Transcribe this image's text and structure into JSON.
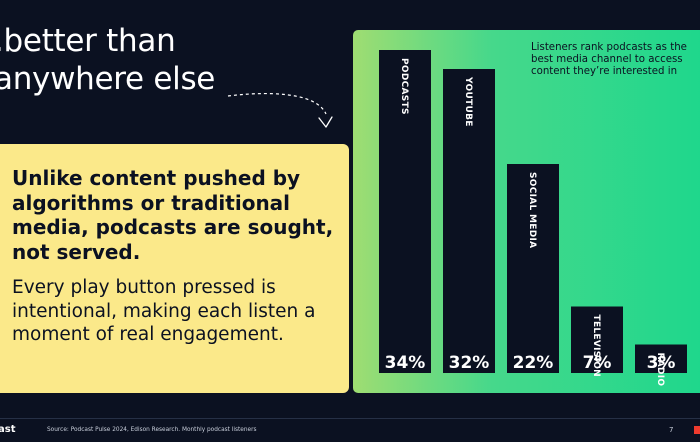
{
  "headline": {
    "line1": ".better than",
    "line2": "anywhere else"
  },
  "callout": {
    "heading": "Unlike content pushed by algorithms or traditional media, podcasts are sought, not served.",
    "body": "Every play button pressed is intentional, making each listen a moment of real engagement."
  },
  "chart_note": "Listeners rank podcasts as the best media channel to access content they’re interested in",
  "chart_data": {
    "type": "bar",
    "categories": [
      "PODCASTS",
      "YOUTUBE",
      "SOCIAL MEDIA",
      "TELEVISION",
      "RADIO"
    ],
    "values": [
      34,
      32,
      22,
      7,
      3
    ],
    "value_labels": [
      "34%",
      "32%",
      "22%",
      "7%",
      "3%"
    ],
    "title": "",
    "xlabel": "",
    "ylabel": "",
    "ylim": [
      0,
      34
    ],
    "grid": false,
    "legend": "none"
  },
  "footer": {
    "brand": "ast",
    "source": "Source: Podcast Pulse 2024, Edison Research. Monthly podcast listeners",
    "page_number": "7"
  },
  "colors": {
    "background": "#0b1121",
    "callout": "#fbe98a",
    "bar": "#0b1121",
    "panel_start": "#9fdd72",
    "panel_end": "#1fd78c",
    "accent": "#ef3b2e"
  },
  "icons": {
    "arrow": "dashed-curved-arrow-icon"
  }
}
